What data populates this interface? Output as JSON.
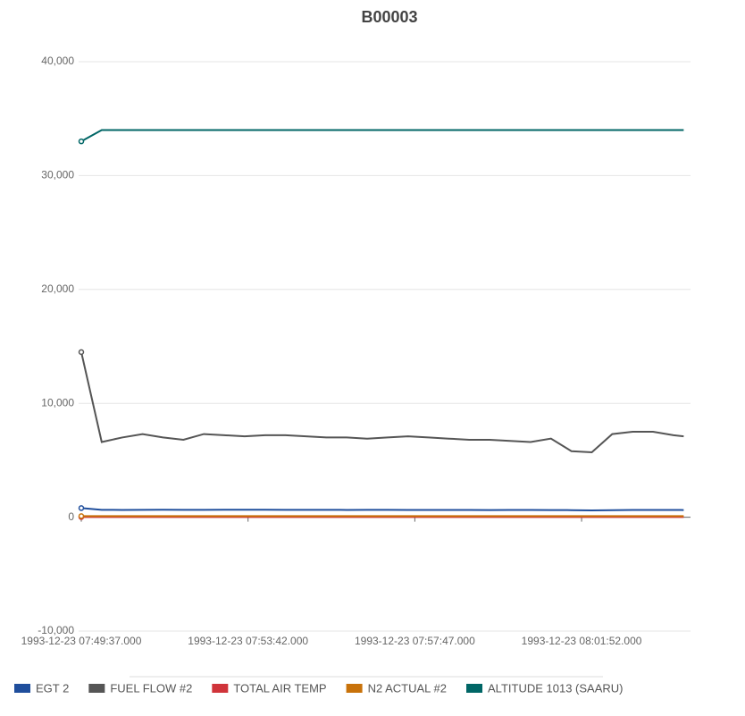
{
  "chart_data": {
    "type": "line",
    "title": "B00003",
    "x": [
      "1993-12-23 07:49:37.000",
      "1993-12-23 07:50:07.000",
      "1993-12-23 07:50:37.000",
      "1993-12-23 07:51:07.000",
      "1993-12-23 07:51:37.000",
      "1993-12-23 07:52:07.000",
      "1993-12-23 07:52:37.000",
      "1993-12-23 07:53:07.000",
      "1993-12-23 07:53:37.000",
      "1993-12-23 07:54:07.000",
      "1993-12-23 07:54:37.000",
      "1993-12-23 07:55:07.000",
      "1993-12-23 07:55:37.000",
      "1993-12-23 07:56:07.000",
      "1993-12-23 07:56:37.000",
      "1993-12-23 07:57:07.000",
      "1993-12-23 07:57:37.000",
      "1993-12-23 07:58:07.000",
      "1993-12-23 07:58:37.000",
      "1993-12-23 07:59:07.000",
      "1993-12-23 07:59:37.000",
      "1993-12-23 08:00:07.000",
      "1993-12-23 08:00:37.000",
      "1993-12-23 08:01:07.000",
      "1993-12-23 08:01:37.000",
      "1993-12-23 08:02:07.000",
      "1993-12-23 08:02:37.000",
      "1993-12-23 08:03:07.000",
      "1993-12-23 08:03:37.000",
      "1993-12-23 08:04:07.000",
      "1993-12-23 08:04:22.000"
    ],
    "series": [
      {
        "name": "EGT 2",
        "color": "#1f4e9c",
        "values": [
          800,
          650,
          640,
          650,
          660,
          650,
          650,
          660,
          660,
          660,
          650,
          650,
          650,
          640,
          650,
          650,
          640,
          640,
          640,
          640,
          630,
          640,
          640,
          630,
          620,
          600,
          620,
          640,
          640,
          640,
          630
        ]
      },
      {
        "name": "FUEL FLOW #2",
        "color": "#555555",
        "values": [
          14500,
          6600,
          7000,
          7300,
          7000,
          6800,
          7300,
          7200,
          7100,
          7200,
          7200,
          7100,
          7000,
          7000,
          6900,
          7000,
          7100,
          7000,
          6900,
          6800,
          6800,
          6700,
          6600,
          6900,
          5800,
          5700,
          7300,
          7500,
          7500,
          7200,
          7100
        ]
      },
      {
        "name": "TOTAL AIR TEMP",
        "color": "#d0343a",
        "values": [
          15,
          15,
          15,
          15,
          15,
          15,
          15,
          15,
          15,
          15,
          15,
          15,
          15,
          15,
          15,
          15,
          15,
          15,
          15,
          15,
          15,
          15,
          15,
          15,
          15,
          15,
          15,
          15,
          15,
          15,
          15
        ]
      },
      {
        "name": "N2 ACTUAL #2",
        "color": "#c8720a",
        "values": [
          95,
          95,
          95,
          95,
          95,
          95,
          95,
          95,
          95,
          95,
          95,
          95,
          95,
          95,
          95,
          95,
          95,
          95,
          95,
          95,
          95,
          95,
          95,
          95,
          95,
          95,
          95,
          95,
          95,
          95,
          95
        ]
      },
      {
        "name": "ALTITUDE 1013 (SAARU)",
        "color": "#006666",
        "values": [
          33000,
          34000,
          34000,
          34000,
          34000,
          34000,
          34000,
          34000,
          34000,
          34000,
          34000,
          34000,
          34000,
          34000,
          34000,
          34000,
          34000,
          34000,
          34000,
          34000,
          34000,
          34000,
          34000,
          34000,
          34000,
          34000,
          34000,
          34000,
          34000,
          34000,
          34000
        ]
      }
    ],
    "xlim": [
      "1993-12-23 07:49:37.000",
      "1993-12-23 08:04:32.000"
    ],
    "xticks": [
      "1993-12-23 07:49:37.000",
      "1993-12-23 07:53:42.000",
      "1993-12-23 07:57:47.000",
      "1993-12-23 08:01:52.000"
    ],
    "ylim": [
      -10000,
      40000
    ],
    "yticks": [
      {
        "value": -10000,
        "label": "-10,000"
      },
      0,
      {
        "value": 10000,
        "label": "10,000"
      },
      {
        "value": 20000,
        "label": "20,000"
      },
      {
        "value": 30000,
        "label": "30,000"
      },
      {
        "value": 40000,
        "label": "40,000"
      }
    ],
    "grid": true,
    "legend": "bottom"
  }
}
